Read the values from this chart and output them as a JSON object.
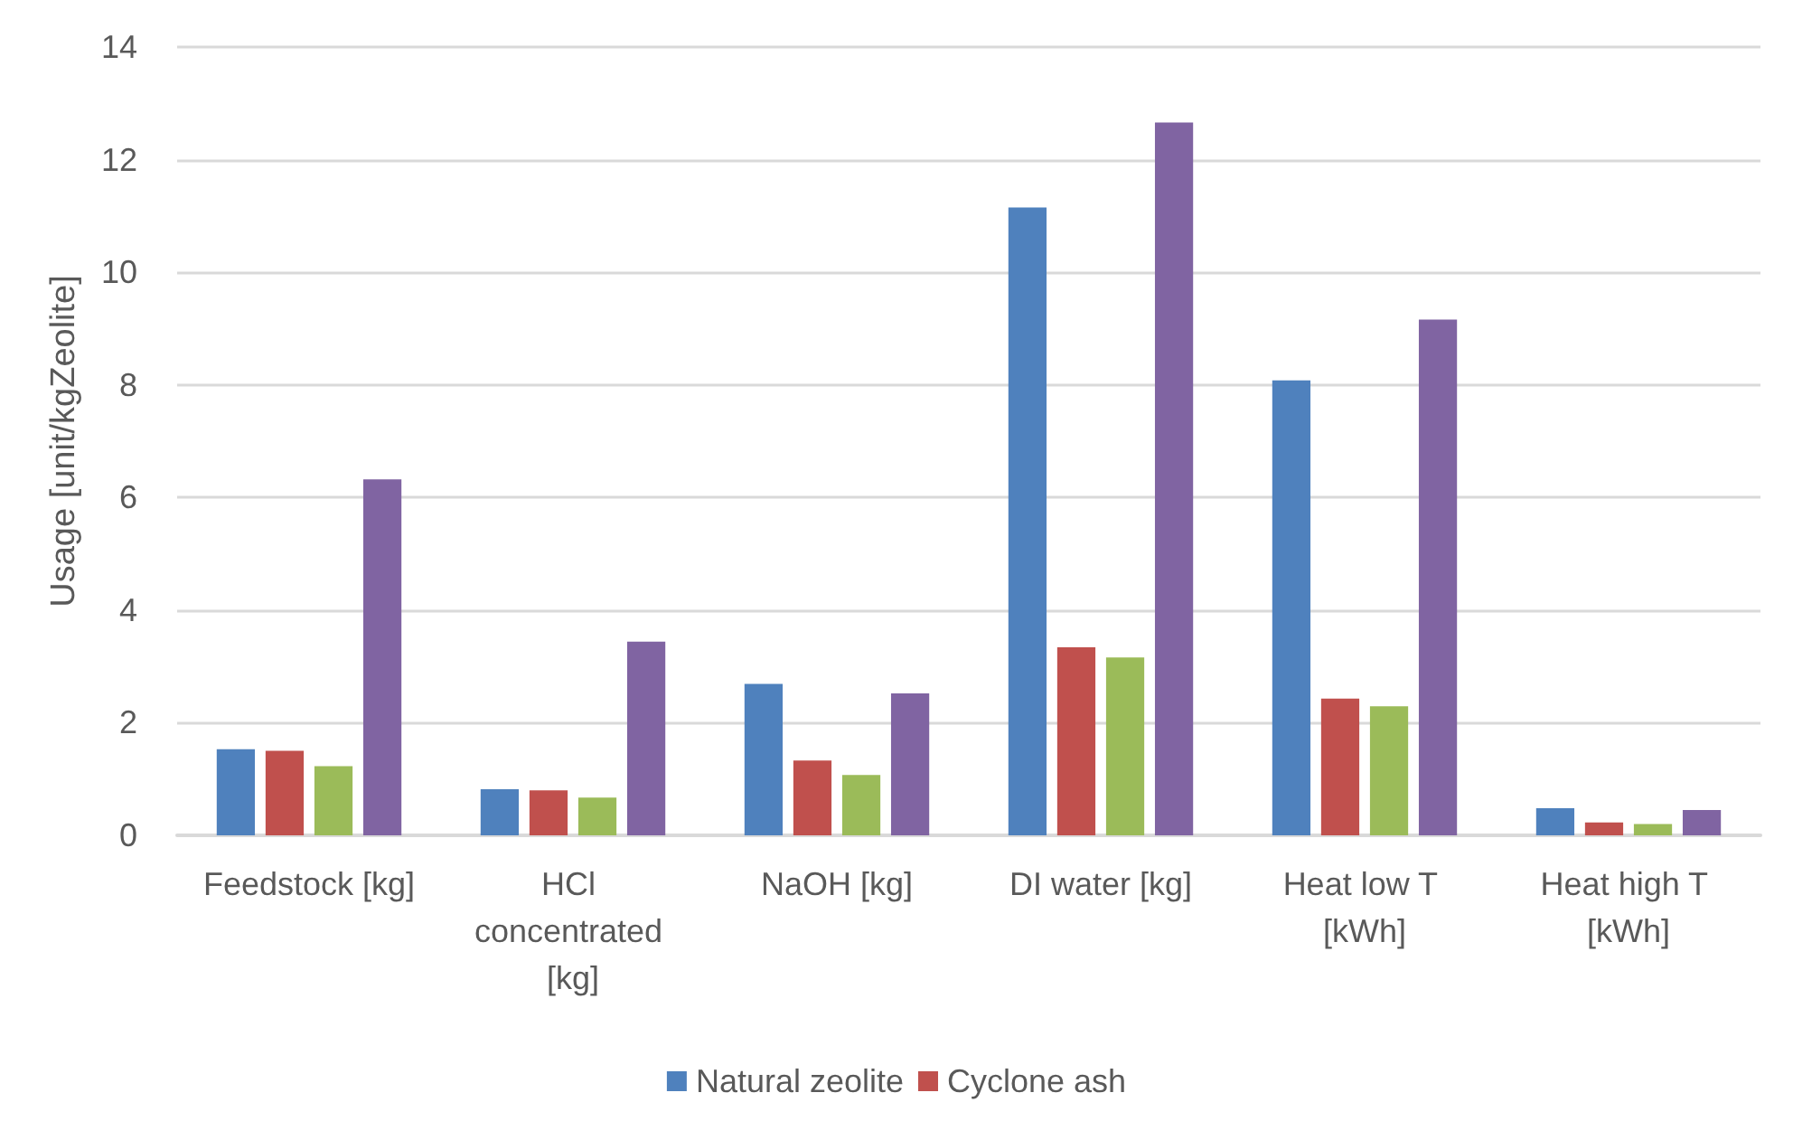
{
  "chart_data": {
    "type": "bar",
    "ylabel": "Usage [unit/kgZeolite]",
    "categories": [
      "Feedstock [kg]",
      "HCl concentrated [kg]",
      "NaOH [kg]",
      "DI water [kg]",
      "Heat low T [kWh]",
      "Heat high T [kWh]"
    ],
    "series": [
      {
        "name": "Natural zeolite",
        "color": "#4f81bd",
        "values": [
          1.53,
          0.82,
          2.69,
          11.15,
          8.08,
          0.48
        ]
      },
      {
        "name": "Cyclone ash",
        "color": "#c0504d",
        "values": [
          1.5,
          0.8,
          1.33,
          3.34,
          2.43,
          0.23
        ]
      },
      {
        "color": "#9bbb59",
        "values": [
          1.23,
          0.67,
          1.07,
          3.16,
          2.29,
          0.2
        ]
      },
      {
        "color": "#8064a2",
        "values": [
          6.32,
          3.44,
          2.52,
          12.66,
          9.16,
          0.45
        ]
      }
    ],
    "ylim": [
      0,
      14
    ],
    "yticks": [
      0,
      2,
      4,
      6,
      8,
      10,
      12,
      14
    ],
    "grid": "y",
    "legend": "bottom"
  }
}
